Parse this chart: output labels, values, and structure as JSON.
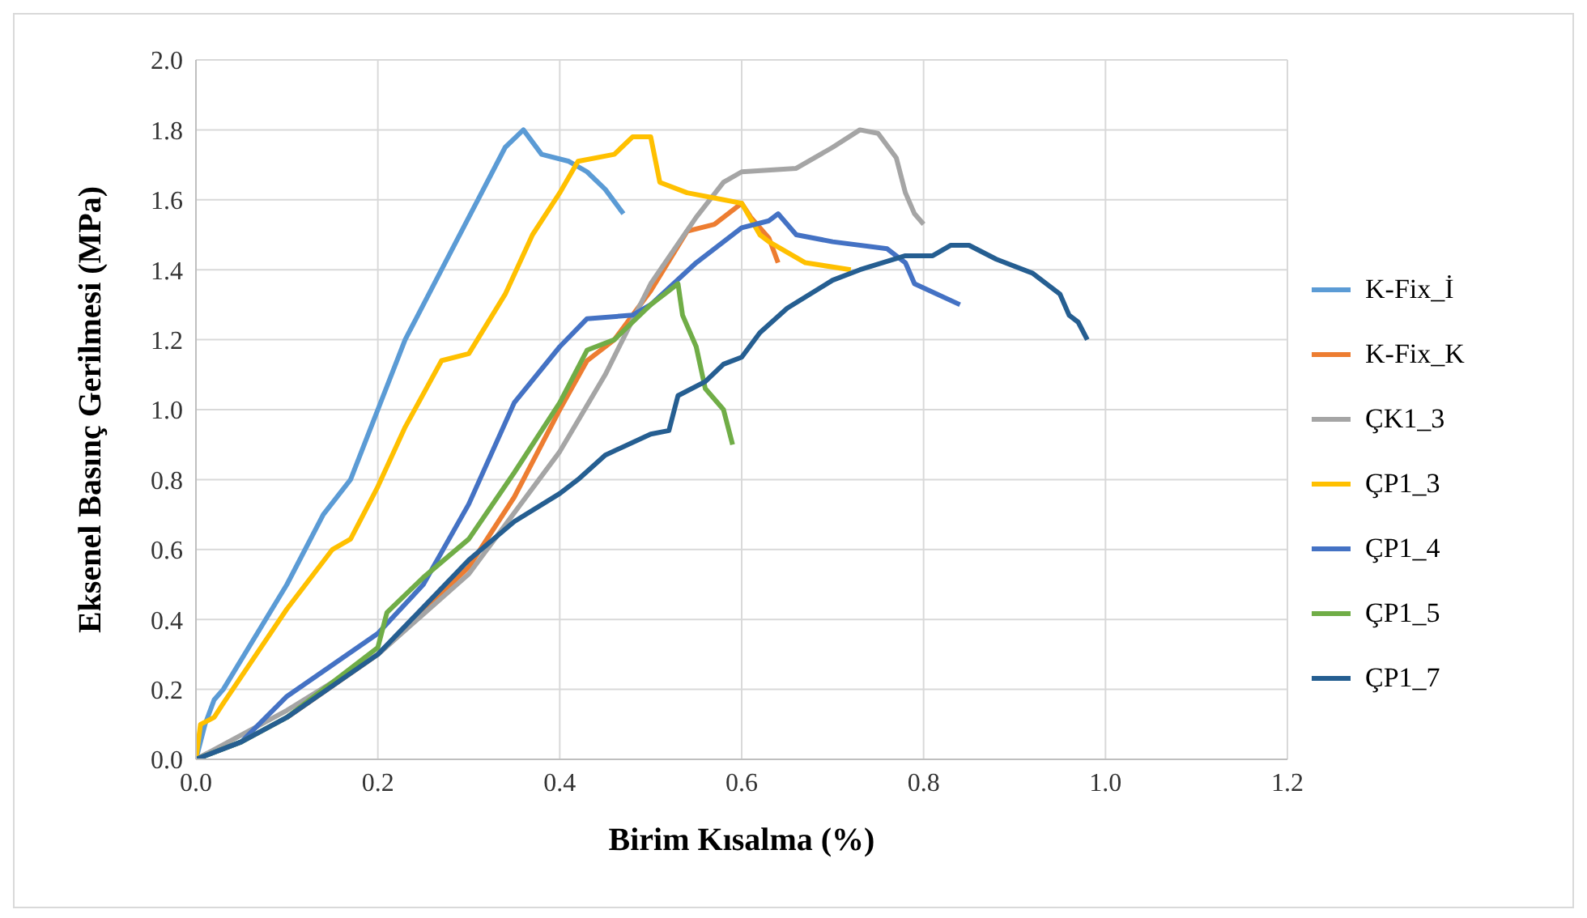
{
  "chart_data": {
    "type": "line",
    "xlabel": "Birim Kısalma (%)",
    "ylabel": "Eksenel Basınç Gerilmesi (MPa)",
    "xlim": [
      0,
      1.2
    ],
    "xticks": [
      {
        "value": 0,
        "label": "0.0"
      },
      {
        "value": 0.2,
        "label": "0.2"
      },
      {
        "value": 0.4,
        "label": "0.4"
      },
      {
        "value": 0.6,
        "label": "0.6"
      },
      {
        "value": 0.8,
        "label": "0.8"
      },
      {
        "value": 1,
        "label": "1.0"
      },
      {
        "value": 1.2,
        "label": "1.2"
      }
    ],
    "ylim": [
      0,
      2
    ],
    "yticks": [
      {
        "value": 0,
        "label": "0.0"
      },
      {
        "value": 0.2,
        "label": "0.2"
      },
      {
        "value": 0.4,
        "label": "0.4"
      },
      {
        "value": 0.6,
        "label": "0.6"
      },
      {
        "value": 0.8,
        "label": "0.8"
      },
      {
        "value": 1,
        "label": "1.0"
      },
      {
        "value": 1.2,
        "label": "1.2"
      },
      {
        "value": 1.4,
        "label": "1.4"
      },
      {
        "value": 1.6,
        "label": "1.6"
      },
      {
        "value": 1.8,
        "label": "1.8"
      },
      {
        "value": 2,
        "label": "2.0"
      }
    ],
    "grid": true,
    "legend": "right",
    "marker": "none",
    "line_style": "solid",
    "series": [
      {
        "name": "K-Fix_İ",
        "color": "#5b9bd5",
        "x": [
          0,
          0.01,
          0.02,
          0.03,
          0.1,
          0.14,
          0.17,
          0.2,
          0.23,
          0.27,
          0.31,
          0.34,
          0.36,
          0.38,
          0.41,
          0.43,
          0.45,
          0.47
        ],
        "values": [
          0,
          0.1,
          0.17,
          0.2,
          0.5,
          0.7,
          0.8,
          1.0,
          1.2,
          1.4,
          1.6,
          1.75,
          1.8,
          1.73,
          1.71,
          1.68,
          1.63,
          1.56
        ]
      },
      {
        "name": "K-Fix_K",
        "color": "#ed7d31",
        "x": [
          0.1,
          0.2,
          0.3,
          0.35,
          0.4,
          0.43,
          0.46,
          0.5,
          0.54,
          0.57,
          0.6,
          0.61,
          0.63,
          0.64
        ],
        "values": [
          0.12,
          0.3,
          0.55,
          0.75,
          1.0,
          1.14,
          1.2,
          1.34,
          1.51,
          1.53,
          1.59,
          1.55,
          1.49,
          1.42
        ]
      },
      {
        "name": "ÇK1_3",
        "color": "#a5a5a5",
        "x": [
          0,
          0.1,
          0.2,
          0.3,
          0.4,
          0.45,
          0.5,
          0.55,
          0.58,
          0.6,
          0.66,
          0.7,
          0.73,
          0.75,
          0.77,
          0.78,
          0.79,
          0.8
        ],
        "values": [
          0,
          0.14,
          0.3,
          0.53,
          0.88,
          1.1,
          1.36,
          1.55,
          1.65,
          1.68,
          1.69,
          1.75,
          1.8,
          1.79,
          1.72,
          1.62,
          1.56,
          1.53
        ]
      },
      {
        "name": "ÇP1_3",
        "color": "#ffc000",
        "x": [
          0,
          0.005,
          0.02,
          0.03,
          0.1,
          0.15,
          0.17,
          0.2,
          0.23,
          0.27,
          0.3,
          0.34,
          0.37,
          0.4,
          0.42,
          0.46,
          0.48,
          0.5,
          0.51,
          0.54,
          0.58,
          0.6,
          0.62,
          0.63,
          0.67,
          0.72
        ],
        "values": [
          0,
          0.1,
          0.12,
          0.16,
          0.43,
          0.6,
          0.63,
          0.78,
          0.95,
          1.14,
          1.16,
          1.33,
          1.5,
          1.62,
          1.71,
          1.73,
          1.78,
          1.78,
          1.65,
          1.62,
          1.6,
          1.59,
          1.5,
          1.48,
          1.42,
          1.4
        ]
      },
      {
        "name": "ÇP1_4",
        "color": "#4472c4",
        "x": [
          0,
          0.05,
          0.1,
          0.2,
          0.25,
          0.3,
          0.35,
          0.4,
          0.43,
          0.48,
          0.5,
          0.55,
          0.6,
          0.63,
          0.64,
          0.66,
          0.7,
          0.76,
          0.78,
          0.79,
          0.84
        ],
        "values": [
          0,
          0.05,
          0.18,
          0.36,
          0.5,
          0.73,
          1.02,
          1.18,
          1.26,
          1.27,
          1.3,
          1.42,
          1.52,
          1.54,
          1.56,
          1.5,
          1.48,
          1.46,
          1.42,
          1.36,
          1.3
        ]
      },
      {
        "name": "ÇP1_5",
        "color": "#70ad47",
        "x": [
          0,
          0.05,
          0.1,
          0.2,
          0.21,
          0.25,
          0.3,
          0.35,
          0.4,
          0.43,
          0.46,
          0.5,
          0.52,
          0.53,
          0.535,
          0.55,
          0.56,
          0.58,
          0.59
        ],
        "values": [
          0,
          0.05,
          0.12,
          0.32,
          0.42,
          0.52,
          0.63,
          0.82,
          1.02,
          1.17,
          1.2,
          1.3,
          1.34,
          1.36,
          1.27,
          1.18,
          1.06,
          1.0,
          0.9
        ]
      },
      {
        "name": "ÇP1_7",
        "color": "#255e91",
        "x": [
          0,
          0.05,
          0.1,
          0.2,
          0.3,
          0.35,
          0.4,
          0.42,
          0.45,
          0.5,
          0.52,
          0.53,
          0.56,
          0.58,
          0.6,
          0.62,
          0.65,
          0.7,
          0.73,
          0.78,
          0.81,
          0.83,
          0.85,
          0.88,
          0.92,
          0.95,
          0.96,
          0.97,
          0.98
        ],
        "values": [
          0,
          0.05,
          0.12,
          0.3,
          0.57,
          0.68,
          0.76,
          0.8,
          0.87,
          0.93,
          0.94,
          1.04,
          1.08,
          1.13,
          1.15,
          1.22,
          1.29,
          1.37,
          1.4,
          1.44,
          1.44,
          1.47,
          1.47,
          1.43,
          1.39,
          1.33,
          1.27,
          1.25,
          1.2
        ]
      }
    ]
  }
}
